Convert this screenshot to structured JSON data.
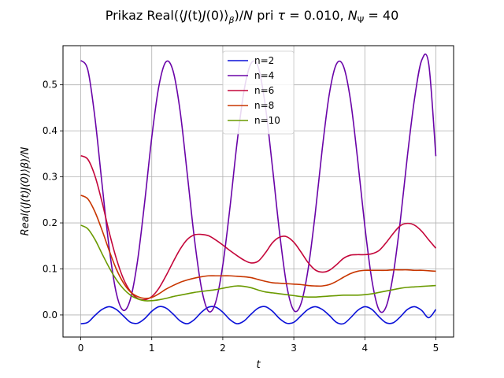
{
  "chart_data": {
    "type": "line",
    "title": "Prikaz Real(⟨J(t)J(0)⟩_β)/N pri τ = 0.010, N_Ψ = 40",
    "title_parts": {
      "prefix": "Prikaz Real(",
      "J1": "J",
      "t_arg": "(t)",
      "J2": "J",
      "zero_arg": "(0)",
      "close_angle": "⟩",
      "beta": "β",
      "over_n": ")/",
      "N": "N",
      "mid": " pri ",
      "tau": "τ",
      "tau_val": " = 0.010, ",
      "Npsi": "N",
      "psi": "Ψ",
      "npsi_val": " = 40"
    },
    "xlabel": "t",
    "ylabel": "Real(⟨J(t)J(0)⟩β)/N",
    "xlim": [
      -0.25,
      5.25
    ],
    "ylim": [
      -0.048,
      0.585
    ],
    "x_ticks": [
      0,
      1,
      2,
      3,
      4,
      5
    ],
    "x_tick_labels": [
      "0",
      "1",
      "2",
      "3",
      "4",
      "5"
    ],
    "y_ticks": [
      0.0,
      0.1,
      0.2,
      0.3,
      0.4,
      0.5
    ],
    "y_tick_labels": [
      "0.0",
      "0.1",
      "0.2",
      "0.3",
      "0.4",
      "0.5"
    ],
    "grid": true,
    "legend_position": "top-center",
    "series": [
      {
        "name": "n=2",
        "color": "#0a10d8",
        "x": [
          0,
          0.1,
          0.2,
          0.3,
          0.4,
          0.5,
          0.6,
          0.7,
          0.8,
          0.9,
          1.0,
          1.1,
          1.2,
          1.3,
          1.4,
          1.5,
          1.6,
          1.7,
          1.8,
          1.9,
          2.0,
          2.1,
          2.2,
          2.3,
          2.4,
          2.5,
          2.6,
          2.7,
          2.8,
          2.9,
          3.0,
          3.1,
          3.2,
          3.3,
          3.4,
          3.5,
          3.6,
          3.7,
          3.8,
          3.9,
          4.0,
          4.1,
          4.2,
          4.3,
          4.4,
          4.5,
          4.6,
          4.7,
          4.8,
          4.9,
          5.0
        ],
        "y": [
          -0.019,
          -0.016,
          -0.001,
          0.012,
          0.018,
          0.012,
          -0.002,
          -0.016,
          -0.018,
          -0.008,
          0.008,
          0.018,
          0.015,
          0.002,
          -0.013,
          -0.019,
          -0.01,
          0.006,
          0.017,
          0.017,
          0.006,
          -0.01,
          -0.019,
          -0.013,
          0.002,
          0.015,
          0.018,
          0.008,
          -0.008,
          -0.018,
          -0.016,
          -0.002,
          0.012,
          0.018,
          0.012,
          -0.001,
          -0.016,
          -0.019,
          -0.006,
          0.01,
          0.018,
          0.012,
          -0.004,
          -0.017,
          -0.017,
          -0.004,
          0.012,
          0.018,
          0.01,
          -0.006,
          0.012
        ]
      },
      {
        "name": "n=4",
        "color": "#6a04a8",
        "x": [
          0,
          0.1,
          0.2,
          0.3,
          0.4,
          0.5,
          0.6,
          0.7,
          0.8,
          0.9,
          1.0,
          1.1,
          1.2,
          1.3,
          1.4,
          1.5,
          1.6,
          1.7,
          1.8,
          1.9,
          2.0,
          2.1,
          2.2,
          2.3,
          2.4,
          2.5,
          2.6,
          2.7,
          2.8,
          2.9,
          3.0,
          3.1,
          3.2,
          3.3,
          3.4,
          3.5,
          3.6,
          3.7,
          3.8,
          3.9,
          4.0,
          4.1,
          4.2,
          4.3,
          4.4,
          4.5,
          4.6,
          4.7,
          4.8,
          4.9,
          5.0
        ],
        "y": [
          0.553,
          0.532,
          0.428,
          0.284,
          0.146,
          0.048,
          0.01,
          0.035,
          0.118,
          0.245,
          0.386,
          0.497,
          0.55,
          0.53,
          0.442,
          0.306,
          0.166,
          0.058,
          0.008,
          0.028,
          0.108,
          0.232,
          0.373,
          0.488,
          0.547,
          0.538,
          0.453,
          0.32,
          0.178,
          0.064,
          0.01,
          0.024,
          0.098,
          0.218,
          0.36,
          0.48,
          0.545,
          0.54,
          0.465,
          0.336,
          0.193,
          0.075,
          0.011,
          0.018,
          0.088,
          0.205,
          0.346,
          0.47,
          0.553,
          0.545,
          0.345
        ]
      },
      {
        "name": "n=6",
        "color": "#c4063a",
        "x": [
          0,
          0.1,
          0.2,
          0.3,
          0.4,
          0.5,
          0.6,
          0.7,
          0.8,
          0.9,
          1.0,
          1.1,
          1.2,
          1.3,
          1.4,
          1.5,
          1.6,
          1.7,
          1.8,
          1.9,
          2.0,
          2.1,
          2.2,
          2.3,
          2.4,
          2.5,
          2.6,
          2.7,
          2.8,
          2.9,
          3.0,
          3.1,
          3.2,
          3.3,
          3.4,
          3.5,
          3.6,
          3.7,
          3.8,
          3.9,
          4.0,
          4.1,
          4.2,
          4.3,
          4.4,
          4.5,
          4.6,
          4.7,
          4.8,
          4.9,
          5.0
        ],
        "y": [
          0.346,
          0.338,
          0.302,
          0.245,
          0.18,
          0.123,
          0.079,
          0.051,
          0.036,
          0.033,
          0.04,
          0.058,
          0.085,
          0.115,
          0.143,
          0.164,
          0.174,
          0.175,
          0.172,
          0.163,
          0.152,
          0.14,
          0.129,
          0.119,
          0.113,
          0.117,
          0.135,
          0.157,
          0.169,
          0.17,
          0.158,
          0.137,
          0.114,
          0.098,
          0.093,
          0.097,
          0.109,
          0.123,
          0.13,
          0.131,
          0.131,
          0.133,
          0.14,
          0.157,
          0.177,
          0.194,
          0.199,
          0.195,
          0.182,
          0.163,
          0.145
        ]
      },
      {
        "name": "n=8",
        "color": "#c83600",
        "x": [
          0,
          0.1,
          0.2,
          0.3,
          0.4,
          0.5,
          0.6,
          0.7,
          0.8,
          0.9,
          1.0,
          1.1,
          1.2,
          1.3,
          1.4,
          1.5,
          1.6,
          1.7,
          1.8,
          1.9,
          2.0,
          2.1,
          2.2,
          2.3,
          2.4,
          2.5,
          2.6,
          2.7,
          2.8,
          2.9,
          3.0,
          3.1,
          3.2,
          3.3,
          3.4,
          3.5,
          3.6,
          3.7,
          3.8,
          3.9,
          4.0,
          4.1,
          4.2,
          4.3,
          4.4,
          4.5,
          4.6,
          4.7,
          4.8,
          4.9,
          5.0
        ],
        "y": [
          0.26,
          0.252,
          0.224,
          0.184,
          0.14,
          0.1,
          0.07,
          0.05,
          0.04,
          0.036,
          0.038,
          0.046,
          0.056,
          0.064,
          0.071,
          0.076,
          0.08,
          0.083,
          0.085,
          0.085,
          0.085,
          0.085,
          0.084,
          0.083,
          0.081,
          0.077,
          0.073,
          0.07,
          0.069,
          0.068,
          0.067,
          0.066,
          0.064,
          0.063,
          0.063,
          0.066,
          0.073,
          0.082,
          0.09,
          0.095,
          0.097,
          0.097,
          0.097,
          0.097,
          0.098,
          0.098,
          0.098,
          0.097,
          0.097,
          0.096,
          0.095
        ]
      },
      {
        "name": "n=10",
        "color": "#6a9a00",
        "x": [
          0,
          0.1,
          0.2,
          0.3,
          0.4,
          0.5,
          0.6,
          0.7,
          0.8,
          0.9,
          1.0,
          1.1,
          1.2,
          1.3,
          1.4,
          1.5,
          1.6,
          1.7,
          1.8,
          1.9,
          2.0,
          2.1,
          2.2,
          2.3,
          2.4,
          2.5,
          2.6,
          2.7,
          2.8,
          2.9,
          3.0,
          3.1,
          3.2,
          3.3,
          3.4,
          3.5,
          3.6,
          3.7,
          3.8,
          3.9,
          4.0,
          4.1,
          4.2,
          4.3,
          4.4,
          4.5,
          4.6,
          4.7,
          4.8,
          4.9,
          5.0
        ],
        "y": [
          0.195,
          0.187,
          0.164,
          0.133,
          0.103,
          0.077,
          0.057,
          0.043,
          0.035,
          0.031,
          0.031,
          0.033,
          0.036,
          0.04,
          0.043,
          0.046,
          0.049,
          0.051,
          0.053,
          0.055,
          0.058,
          0.061,
          0.063,
          0.062,
          0.059,
          0.054,
          0.05,
          0.048,
          0.046,
          0.044,
          0.042,
          0.04,
          0.039,
          0.039,
          0.04,
          0.041,
          0.042,
          0.043,
          0.043,
          0.043,
          0.044,
          0.046,
          0.049,
          0.052,
          0.055,
          0.058,
          0.06,
          0.061,
          0.062,
          0.063,
          0.064
        ]
      }
    ]
  }
}
